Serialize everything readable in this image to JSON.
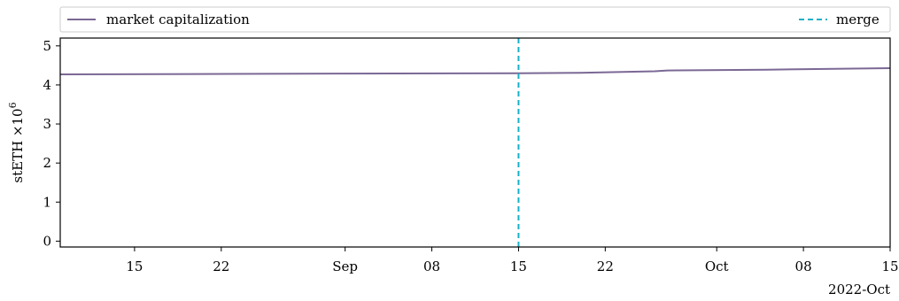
{
  "chart_data": {
    "type": "line",
    "ylabel_base": "stETH ×10",
    "ylabel_exp": "6",
    "ylim": [
      -0.15,
      5.2
    ],
    "yticks": [
      0,
      1,
      2,
      3,
      4,
      5
    ],
    "xlim": [
      "2022-08-09",
      "2022-10-15"
    ],
    "xticks": [
      {
        "date": "2022-08-15",
        "label": "15"
      },
      {
        "date": "2022-08-22",
        "label": "22"
      },
      {
        "date": "2022-09-01",
        "label": "Sep"
      },
      {
        "date": "2022-09-08",
        "label": "08"
      },
      {
        "date": "2022-09-15",
        "label": "15"
      },
      {
        "date": "2022-09-22",
        "label": "22"
      },
      {
        "date": "2022-10-01",
        "label": "Oct"
      },
      {
        "date": "2022-10-08",
        "label": "08"
      },
      {
        "date": "2022-10-15",
        "label": "15"
      }
    ],
    "x_offset_label": "2022-Oct",
    "grid": false,
    "legend_position": "top",
    "series": [
      {
        "name": "market capitalization",
        "color": "#7b6895",
        "style": "solid",
        "points": [
          {
            "x": "2022-08-09",
            "y": 4.27
          },
          {
            "x": "2022-08-20",
            "y": 4.28
          },
          {
            "x": "2022-09-01",
            "y": 4.29
          },
          {
            "x": "2022-09-15",
            "y": 4.3
          },
          {
            "x": "2022-09-20",
            "y": 4.31
          },
          {
            "x": "2022-09-26",
            "y": 4.35
          },
          {
            "x": "2022-09-27",
            "y": 4.37
          },
          {
            "x": "2022-10-05",
            "y": 4.39
          },
          {
            "x": "2022-10-15",
            "y": 4.43
          }
        ]
      }
    ],
    "vlines": [
      {
        "name": "merge",
        "x": "2022-09-15",
        "color": "#17b0c9",
        "style": "dashed"
      }
    ]
  }
}
